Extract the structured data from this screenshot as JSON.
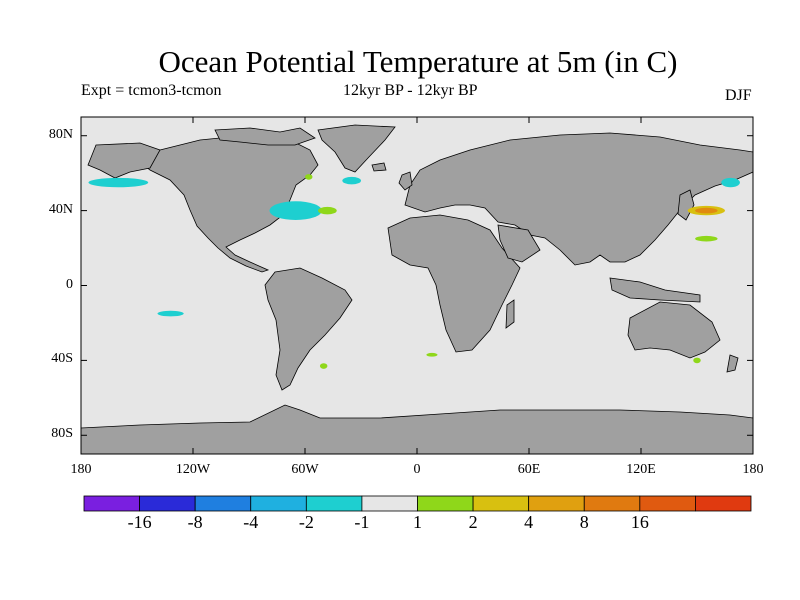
{
  "title": "Ocean Potential Temperature at 5m (in C)",
  "experiment_label": "Expt = tcmon3-tcmon",
  "period_label": "12kyr BP - 12kyr BP",
  "season_label": "DJF",
  "map": {
    "projection": "equirectangular",
    "lon_range": [
      -180,
      180
    ],
    "lat_range": [
      -90,
      90
    ],
    "land_color": "#a0a0a0",
    "ocean_color": "#e6e6e6",
    "coast_color": "#000000",
    "lat_ticks": [
      {
        "lat": 80,
        "label": "80N"
      },
      {
        "lat": 40,
        "label": "40N"
      },
      {
        "lat": 0,
        "label": "0"
      },
      {
        "lat": -40,
        "label": "40S"
      },
      {
        "lat": -80,
        "label": "80S"
      }
    ],
    "lon_ticks": [
      {
        "lon": -180,
        "label": "180"
      },
      {
        "lon": -120,
        "label": "120W"
      },
      {
        "lon": -60,
        "label": "60W"
      },
      {
        "lon": 0,
        "label": "0"
      },
      {
        "lon": 60,
        "label": "60E"
      },
      {
        "lon": 120,
        "label": "120E"
      },
      {
        "lon": 180,
        "label": "180"
      }
    ],
    "anomaly_patches": [
      {
        "name": "north-atlantic-cold-core",
        "lon": -67,
        "lat": 40,
        "rlon": 9,
        "rlat": 3,
        "color": "#1f7fe0"
      },
      {
        "name": "north-atlantic-cold-ring",
        "lon": -65,
        "lat": 40,
        "rlon": 14,
        "rlat": 5,
        "color": "#1ecfd0"
      },
      {
        "name": "north-atlantic-warm",
        "lon": -48,
        "lat": 40,
        "rlon": 5,
        "rlat": 2,
        "color": "#8fd71a"
      },
      {
        "name": "labrador-cold",
        "lon": -35,
        "lat": 56,
        "rlon": 5,
        "rlat": 2,
        "color": "#1ecfd0"
      },
      {
        "name": "greenland-warm",
        "lon": -58,
        "lat": 58,
        "rlon": 2,
        "rlat": 1.5,
        "color": "#8fd71a"
      },
      {
        "name": "north-pacific-cold-west",
        "lon": -160,
        "lat": 55,
        "rlon": 16,
        "rlat": 2.5,
        "color": "#1ecfd0"
      },
      {
        "name": "north-pacific-cold-east",
        "lon": 168,
        "lat": 55,
        "rlon": 5,
        "rlat": 2.5,
        "color": "#1ecfd0"
      },
      {
        "name": "kuroshio-warm",
        "lon": 155,
        "lat": 40,
        "rlon": 10,
        "rlat": 2.5,
        "color": "#d8c010"
      },
      {
        "name": "kuroshio-warm-core",
        "lon": 155,
        "lat": 40,
        "rlon": 6,
        "rlat": 1.5,
        "color": "#e08a10"
      },
      {
        "name": "pacific-warm-lower",
        "lon": 155,
        "lat": 25,
        "rlon": 6,
        "rlat": 1.5,
        "color": "#8fd71a"
      },
      {
        "name": "south-pacific-cold",
        "lon": -132,
        "lat": -15,
        "rlon": 7,
        "rlat": 1.5,
        "color": "#1ecfd0"
      },
      {
        "name": "south-atlantic-warm",
        "lon": -50,
        "lat": -43,
        "rlon": 2,
        "rlat": 1.5,
        "color": "#8fd71a"
      },
      {
        "name": "indian-ocean-warm",
        "lon": 8,
        "lat": -37,
        "rlon": 3,
        "rlat": 1,
        "color": "#8fd71a"
      },
      {
        "name": "tasman-warm",
        "lon": 150,
        "lat": -40,
        "rlon": 2,
        "rlat": 1.5,
        "color": "#8fd71a"
      }
    ]
  },
  "colorbar": {
    "colors": [
      "#7a1fe0",
      "#2a2ad8",
      "#1f7fe0",
      "#1fb0e0",
      "#1ecfd0",
      "#e6e6e6",
      "#8fd71a",
      "#d8c010",
      "#e0a010",
      "#e07a10",
      "#e05a10",
      "#e03a10"
    ],
    "labels": [
      "-16",
      "-8",
      "-4",
      "-2",
      "-1",
      "1",
      "2",
      "4",
      "8",
      "16"
    ]
  }
}
